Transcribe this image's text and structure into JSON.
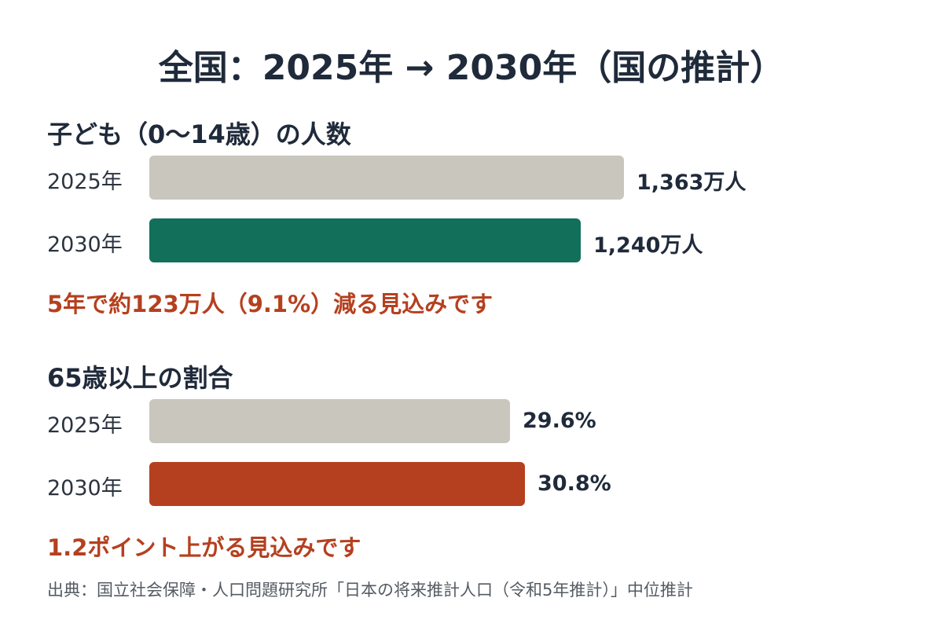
{
  "title": "全国：2025年 → 2030年（国の推計）",
  "colors": {
    "base_bar": "#c8c6bd",
    "children_2030": "#12705a",
    "elderly_2030": "#b5401f",
    "note": "#b5401f",
    "text": "#1f2a3a"
  },
  "chart_data": [
    {
      "type": "bar",
      "orientation": "horizontal",
      "title": "子ども（0〜14歳）の人数",
      "categories": [
        "2025年",
        "2030年"
      ],
      "values": [
        1363,
        1240
      ],
      "unit": "万人",
      "value_labels": [
        "1,363万人",
        "1,240万人"
      ],
      "annotation": "5年で約123万人（9.1%）減る見込みです"
    },
    {
      "type": "bar",
      "orientation": "horizontal",
      "title": "65歳以上の割合",
      "categories": [
        "2025年",
        "2030年"
      ],
      "values": [
        29.6,
        30.8
      ],
      "unit": "%",
      "value_labels": [
        "29.6%",
        "30.8%"
      ],
      "annotation": "1.2ポイント上がる見込みです"
    }
  ],
  "source": "出典：国立社会保障・人口問題研究所「日本の将来推計人口（令和5年推計）」中位推計"
}
